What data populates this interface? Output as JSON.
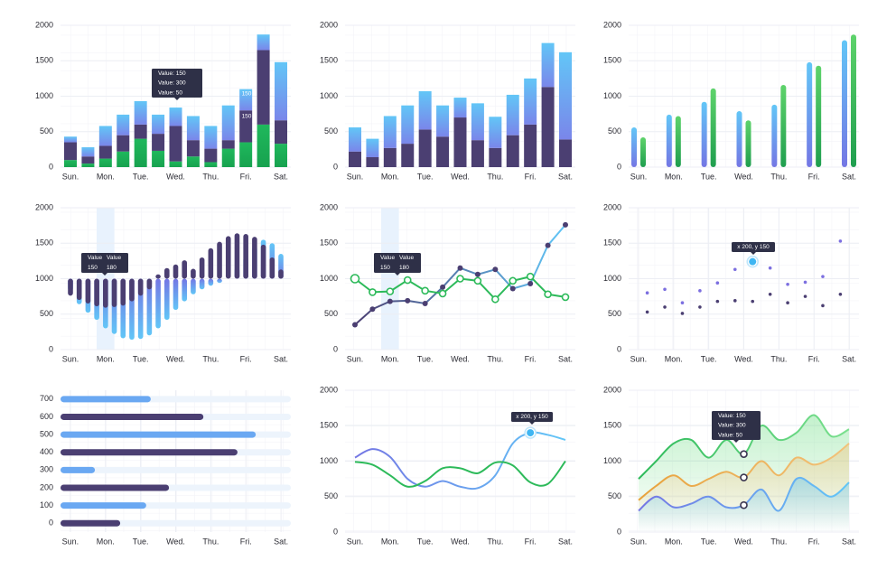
{
  "chart_data": [
    {
      "type": "stacked_bar",
      "categories": [
        "Sun.",
        null,
        "Mon.",
        null,
        "Tue.",
        null,
        "Wed.",
        null,
        "Thu.",
        null,
        "Fri.",
        null,
        "Sat."
      ],
      "series": [
        {
          "color": "#1fb85c",
          "color2": "#17a24f",
          "values": [
            100,
            50,
            120,
            220,
            400,
            230,
            80,
            150,
            70,
            260,
            350,
            600,
            330
          ]
        },
        {
          "color": "#4b3f72",
          "color2": "#4b3f72",
          "values": [
            250,
            100,
            180,
            230,
            200,
            240,
            500,
            230,
            190,
            120,
            450,
            1050,
            330
          ]
        },
        {
          "color": "#62c6f7",
          "color2": "#7a86ea",
          "values": [
            80,
            130,
            280,
            290,
            330,
            270,
            260,
            340,
            320,
            490,
            300,
            220,
            820
          ]
        }
      ],
      "ylim": [
        0,
        2000
      ],
      "yticks": [
        0,
        500,
        1000,
        1500,
        2000
      ],
      "grid": true,
      "tooltip": [
        [
          "Value: 150"
        ],
        [
          "Value: 300"
        ],
        [
          "Value: 50"
        ]
      ],
      "annotations": [
        "150",
        "150"
      ]
    },
    {
      "type": "stacked_bar",
      "categories": [
        "Sun.",
        null,
        "Mon.",
        null,
        "Tue.",
        null,
        "Wed.",
        null,
        "Thu.",
        null,
        "Fri.",
        null,
        "Sat."
      ],
      "series": [
        {
          "color": "#4b3f72",
          "color2": "#4b3f72",
          "values": [
            220,
            140,
            270,
            330,
            530,
            430,
            700,
            380,
            270,
            450,
            600,
            1130,
            390
          ]
        },
        {
          "color": "#62c6f7",
          "color2": "#7a86ea",
          "values": [
            340,
            260,
            450,
            540,
            540,
            440,
            280,
            520,
            440,
            570,
            650,
            620,
            1230
          ]
        }
      ],
      "ylim": [
        0,
        2000
      ],
      "yticks": [
        0,
        500,
        1000,
        1500,
        2000
      ],
      "grid": true
    },
    {
      "type": "grouped_bar",
      "categories": [
        "Sun.",
        "Mon.",
        "Tue.",
        "Wed.",
        "Thu.",
        "Fri.",
        "Sat."
      ],
      "series": [
        {
          "color": "#62c6f7",
          "color2": "#7476e4",
          "values": [
            560,
            740,
            920,
            790,
            880,
            1480,
            1790
          ]
        },
        {
          "color": "#5ed36b",
          "color2": "#1f9e4f",
          "values": [
            420,
            720,
            1110,
            660,
            1160,
            1430,
            1870
          ]
        }
      ],
      "ylim": [
        0,
        2000
      ],
      "yticks": [
        0,
        500,
        1000,
        1500,
        2000
      ],
      "grid": true
    },
    {
      "type": "diverging_bar",
      "baseline": 1000,
      "highlight_category": 4,
      "categories": [
        "Sun.",
        null,
        null,
        null,
        "Mon.",
        null,
        null,
        null,
        "Tue.",
        null,
        null,
        null,
        "Wed.",
        null,
        null,
        null,
        "Thu.",
        null,
        null,
        null,
        "Fri.",
        null,
        null,
        null,
        "Sat."
      ],
      "series": [
        {
          "color": "#62c6f7",
          "color2": "#7476e4",
          "values": [
            830,
            640,
            520,
            420,
            300,
            220,
            160,
            140,
            150,
            200,
            300,
            420,
            560,
            680,
            780,
            850,
            900,
            940,
            1000,
            1150,
            1300,
            1450,
            1550,
            1500,
            1350
          ]
        },
        {
          "color": "#4b3f72",
          "color2": "#4b3f72",
          "values": [
            760,
            700,
            650,
            610,
            590,
            600,
            620,
            680,
            760,
            850,
            1060,
            1150,
            1200,
            1260,
            1140,
            1300,
            1430,
            1520,
            1600,
            1640,
            1630,
            1590,
            1480,
            1300,
            1130
          ]
        }
      ],
      "ylim": [
        0,
        2000
      ],
      "yticks": [
        0,
        500,
        1000,
        1500,
        2000
      ],
      "grid": true,
      "tooltip": [
        [
          "Value",
          "Value"
        ],
        [
          "150",
          "180"
        ]
      ]
    },
    {
      "type": "line",
      "highlight_category": 2,
      "categories": [
        "Sun.",
        null,
        "Mon.",
        null,
        "Tue.",
        null,
        "Wed.",
        null,
        "Thu.",
        null,
        "Fri.",
        null,
        "Sat."
      ],
      "series": [
        {
          "color": "#4b3f72",
          "color2": "#62c6f7",
          "marker": "filled",
          "values": [
            350,
            570,
            680,
            690,
            650,
            880,
            1150,
            1060,
            1130,
            860,
            930,
            1470,
            1760
          ]
        },
        {
          "color": "#2dba5a",
          "color2": "#2dba5a",
          "marker": "hollow",
          "values": [
            1000,
            810,
            820,
            980,
            830,
            790,
            1000,
            970,
            710,
            970,
            1030,
            780,
            740
          ]
        }
      ],
      "ylim": [
        0,
        2000
      ],
      "yticks": [
        0,
        500,
        1000,
        1500,
        2000
      ],
      "grid": true,
      "tooltip": [
        [
          "Value",
          "Value"
        ],
        [
          "150",
          "180"
        ]
      ]
    },
    {
      "type": "scatter",
      "xlim": [
        -0.28,
        6.28
      ],
      "xticks": [
        {
          "value": 0,
          "label": "Sun."
        },
        {
          "value": 1,
          "label": "Mon."
        },
        {
          "value": 2,
          "label": "Tue."
        },
        {
          "value": 3,
          "label": "Wed."
        },
        {
          "value": 4,
          "label": "Thu."
        },
        {
          "value": 5,
          "label": "Fri."
        },
        {
          "value": 6,
          "label": "Sat."
        }
      ],
      "series": [
        {
          "color": "#7c6fe0",
          "x": [
            0.25,
            0.75,
            1.25,
            1.75,
            2.25,
            2.75,
            3.25,
            3.75,
            4.25,
            4.75,
            5.25,
            5.75
          ],
          "values": [
            800,
            850,
            660,
            830,
            940,
            1130,
            1240,
            1150,
            920,
            950,
            1030,
            1530
          ]
        },
        {
          "color": "#4b3f72",
          "x": [
            0.25,
            0.75,
            1.25,
            1.75,
            2.25,
            2.75,
            3.25,
            3.75,
            4.25,
            4.75,
            5.25,
            5.75
          ],
          "values": [
            530,
            600,
            510,
            600,
            680,
            690,
            680,
            780,
            660,
            750,
            620,
            780
          ]
        }
      ],
      "highlight": {
        "series": 0,
        "index": 6
      },
      "ylim": [
        0,
        2000
      ],
      "yticks": [
        0,
        500,
        1000,
        1500,
        2000
      ],
      "grid": true,
      "tooltip": [
        [
          "x 200, y 150"
        ]
      ]
    },
    {
      "type": "hbar",
      "categories": [
        "700",
        "600",
        "500",
        "400",
        "300",
        "200",
        "100",
        "0"
      ],
      "values": [
        2.29,
        3.79,
        5.28,
        4.76,
        0.7,
        2.81,
        2.16,
        1.42
      ],
      "colors": [
        "#6aa8f2",
        "#4b3f72",
        "#6aa8f2",
        "#4b3f72",
        "#6aa8f2",
        "#4b3f72",
        "#6aa8f2",
        "#4b3f72"
      ],
      "track": "#edf4fc",
      "xlim": [
        -0.28,
        6.28
      ],
      "xticks": [
        {
          "value": 0,
          "label": "Sun."
        },
        {
          "value": 1,
          "label": "Mon."
        },
        {
          "value": 2,
          "label": "Tue."
        },
        {
          "value": 3,
          "label": "Wed."
        },
        {
          "value": 4,
          "label": "Thu."
        },
        {
          "value": 5,
          "label": "Fri."
        },
        {
          "value": 6,
          "label": "Sat."
        }
      ],
      "grid": true
    },
    {
      "type": "spline",
      "categories": [
        "Sun.",
        null,
        "Mon.",
        null,
        "Tue.",
        null,
        "Wed.",
        null,
        "Thu.",
        null,
        "Fri.",
        null,
        "Sat."
      ],
      "series": [
        {
          "color": "#7476e4",
          "color2": "#62c6f7",
          "values": [
            1050,
            1170,
            1060,
            750,
            640,
            720,
            640,
            620,
            800,
            1250,
            1400,
            1370,
            1300
          ]
        },
        {
          "color": "#2dba5a",
          "color2": "#2dba5a",
          "values": [
            990,
            950,
            800,
            640,
            720,
            900,
            900,
            830,
            980,
            940,
            700,
            680,
            1000
          ]
        }
      ],
      "highlight": {
        "series": 0,
        "index": 10
      },
      "ylim": [
        0,
        2000
      ],
      "yticks": [
        0,
        500,
        1000,
        1500,
        2000
      ],
      "grid": true,
      "tooltip": [
        [
          "x 200, y 150"
        ]
      ]
    },
    {
      "type": "area",
      "categories": [
        "Sun.",
        null,
        "Mon.",
        null,
        "Tue.",
        null,
        "Wed.",
        null,
        "Thu.",
        null,
        "Fri.",
        null,
        "Sat."
      ],
      "series": [
        {
          "color": "#2dba5a",
          "color2": "#7be08f",
          "values": [
            750,
            1000,
            1250,
            1300,
            1050,
            1300,
            1100,
            1500,
            1300,
            1400,
            1650,
            1350,
            1450
          ]
        },
        {
          "color": "#e8a23c",
          "color2": "#f2c27a",
          "values": [
            450,
            650,
            800,
            650,
            750,
            850,
            770,
            1000,
            800,
            1050,
            950,
            1050,
            1250
          ]
        },
        {
          "color": "#7476e4",
          "color2": "#62c6f7",
          "values": [
            300,
            500,
            350,
            400,
            500,
            350,
            380,
            600,
            300,
            750,
            650,
            500,
            700
          ]
        }
      ],
      "highlight_index": 6,
      "ylim": [
        0,
        2000
      ],
      "yticks": [
        0,
        500,
        1000,
        1500,
        2000
      ],
      "grid": true,
      "tooltip": [
        [
          "Value: 150"
        ],
        [
          "Value: 300"
        ],
        [
          "Value: 50"
        ]
      ]
    }
  ]
}
